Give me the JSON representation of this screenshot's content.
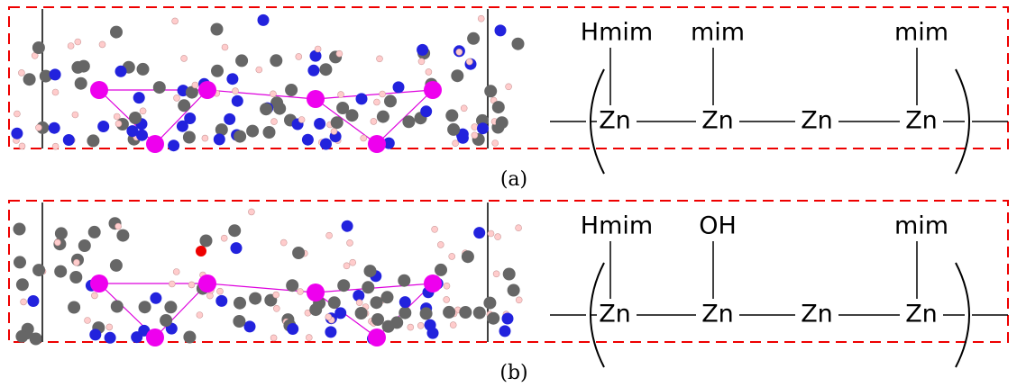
{
  "panels": [
    {
      "caption": "(a)",
      "ligands": [
        "Hmim",
        "mim",
        "mim"
      ],
      "metals": [
        "Zn",
        "Zn",
        "Zn",
        "Zn"
      ]
    },
    {
      "caption": "(b)",
      "ligands": [
        "Hmim",
        "OH",
        "mim"
      ],
      "metals": [
        "Zn",
        "Zn",
        "Zn",
        "Zn"
      ]
    }
  ]
}
